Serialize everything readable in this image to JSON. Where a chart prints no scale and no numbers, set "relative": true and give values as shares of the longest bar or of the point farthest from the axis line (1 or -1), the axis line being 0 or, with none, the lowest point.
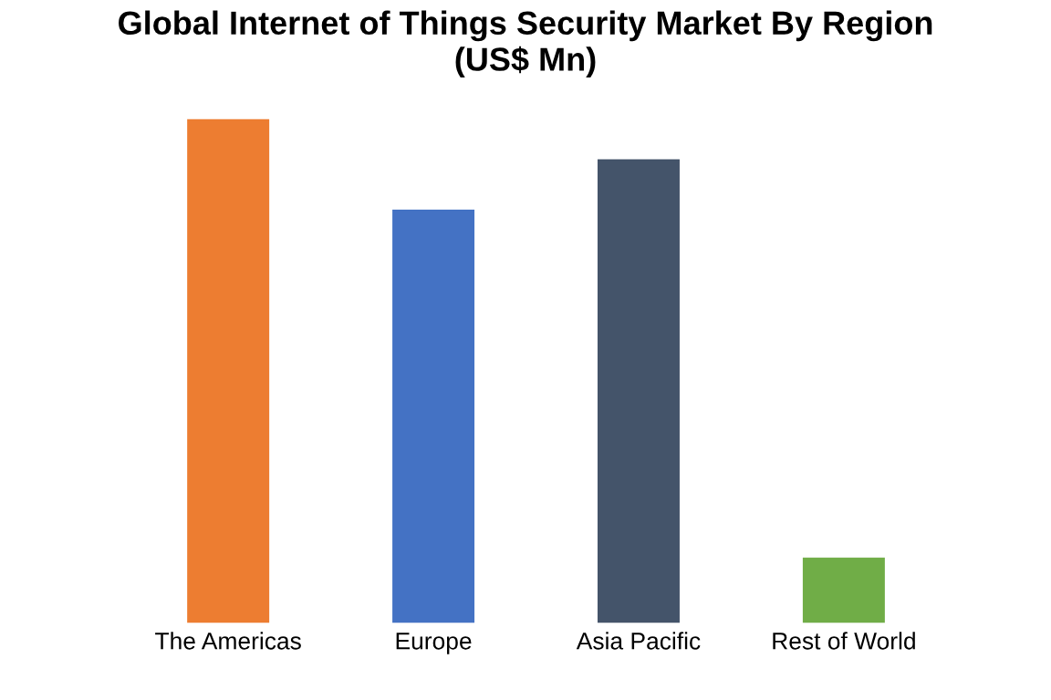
{
  "chart_data": {
    "type": "bar",
    "title": "Global Internet of Things Security Market By Region\n(US$ Mn)",
    "categories": [
      "The Americas",
      "Europe",
      "Asia Pacific",
      "Rest of World"
    ],
    "values": [
      1,
      0.82,
      0.92,
      0.13
    ],
    "colors": [
      "#ed7d31",
      "#4472c4",
      "#44546a",
      "#70ad47"
    ],
    "relative": true,
    "grid": false,
    "legend": false
  }
}
